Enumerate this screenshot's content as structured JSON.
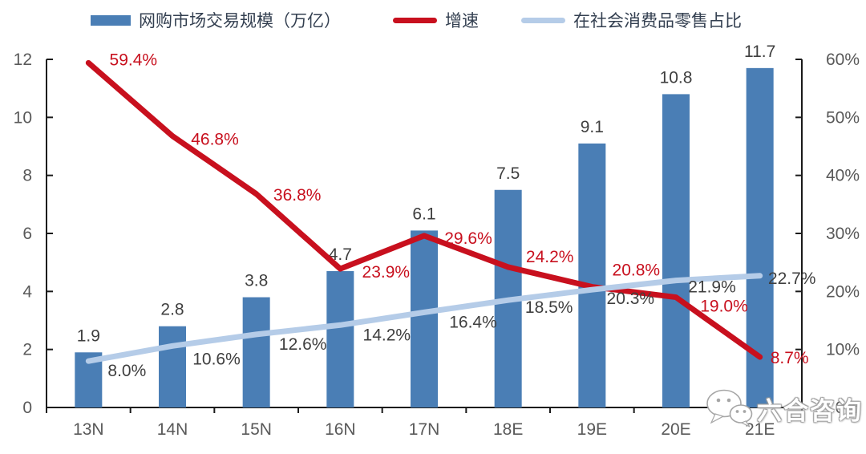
{
  "chart_data": {
    "type": "bar",
    "subtype": "combo-bar-line",
    "title": "",
    "categories": [
      "13N",
      "14N",
      "15N",
      "16N",
      "17N",
      "18E",
      "19E",
      "20E",
      "21E"
    ],
    "series": [
      {
        "name": "网购市场交易规模（万亿）",
        "kind": "bar",
        "axis": "left",
        "color": "#4A7EB5",
        "values": [
          1.9,
          2.8,
          3.8,
          4.7,
          6.1,
          7.5,
          9.1,
          10.8,
          11.7
        ],
        "labels": [
          "1.9",
          "2.8",
          "3.8",
          "4.7",
          "6.1",
          "7.5",
          "9.1",
          "10.8",
          "11.7"
        ]
      },
      {
        "name": "增速",
        "kind": "line",
        "axis": "right",
        "color": "#C8101E",
        "values": [
          59.4,
          46.8,
          36.8,
          23.9,
          29.6,
          24.2,
          20.8,
          19.0,
          8.7
        ],
        "labels": [
          "59.4%",
          "46.8%",
          "36.8%",
          "23.9%",
          "29.6%",
          "24.2%",
          "20.8%",
          "19.0%",
          "8.7%"
        ]
      },
      {
        "name": "在社会消费品零售占比",
        "kind": "line",
        "axis": "right",
        "color": "#B5CCE8",
        "values": [
          8.0,
          10.6,
          12.6,
          14.2,
          16.4,
          18.5,
          20.3,
          21.9,
          22.7
        ],
        "labels": [
          "8.0%",
          "10.6%",
          "12.6%",
          "14.2%",
          "16.4%",
          "18.5%",
          "20.3%",
          "21.9%",
          "22.7%"
        ]
      }
    ],
    "axes": {
      "left": {
        "min": 0,
        "max": 12,
        "step": 2,
        "tick_labels": [
          "0",
          "2",
          "4",
          "6",
          "8",
          "10",
          "12"
        ]
      },
      "right": {
        "min": 0,
        "max": 60,
        "step": 10,
        "tick_labels": [
          "0%",
          "10%",
          "20%",
          "30%",
          "40%",
          "50%",
          "60%"
        ]
      }
    },
    "legend_position": "top",
    "grid": false
  },
  "colors": {
    "axis_line": "#1A1A1A",
    "tick_text": "#595959",
    "data_label_text": "#3F3F3F",
    "legend_text": "#333F50",
    "background": "#FFFFFF"
  },
  "watermark": {
    "text": "六合咨询",
    "icon": "wechat"
  }
}
